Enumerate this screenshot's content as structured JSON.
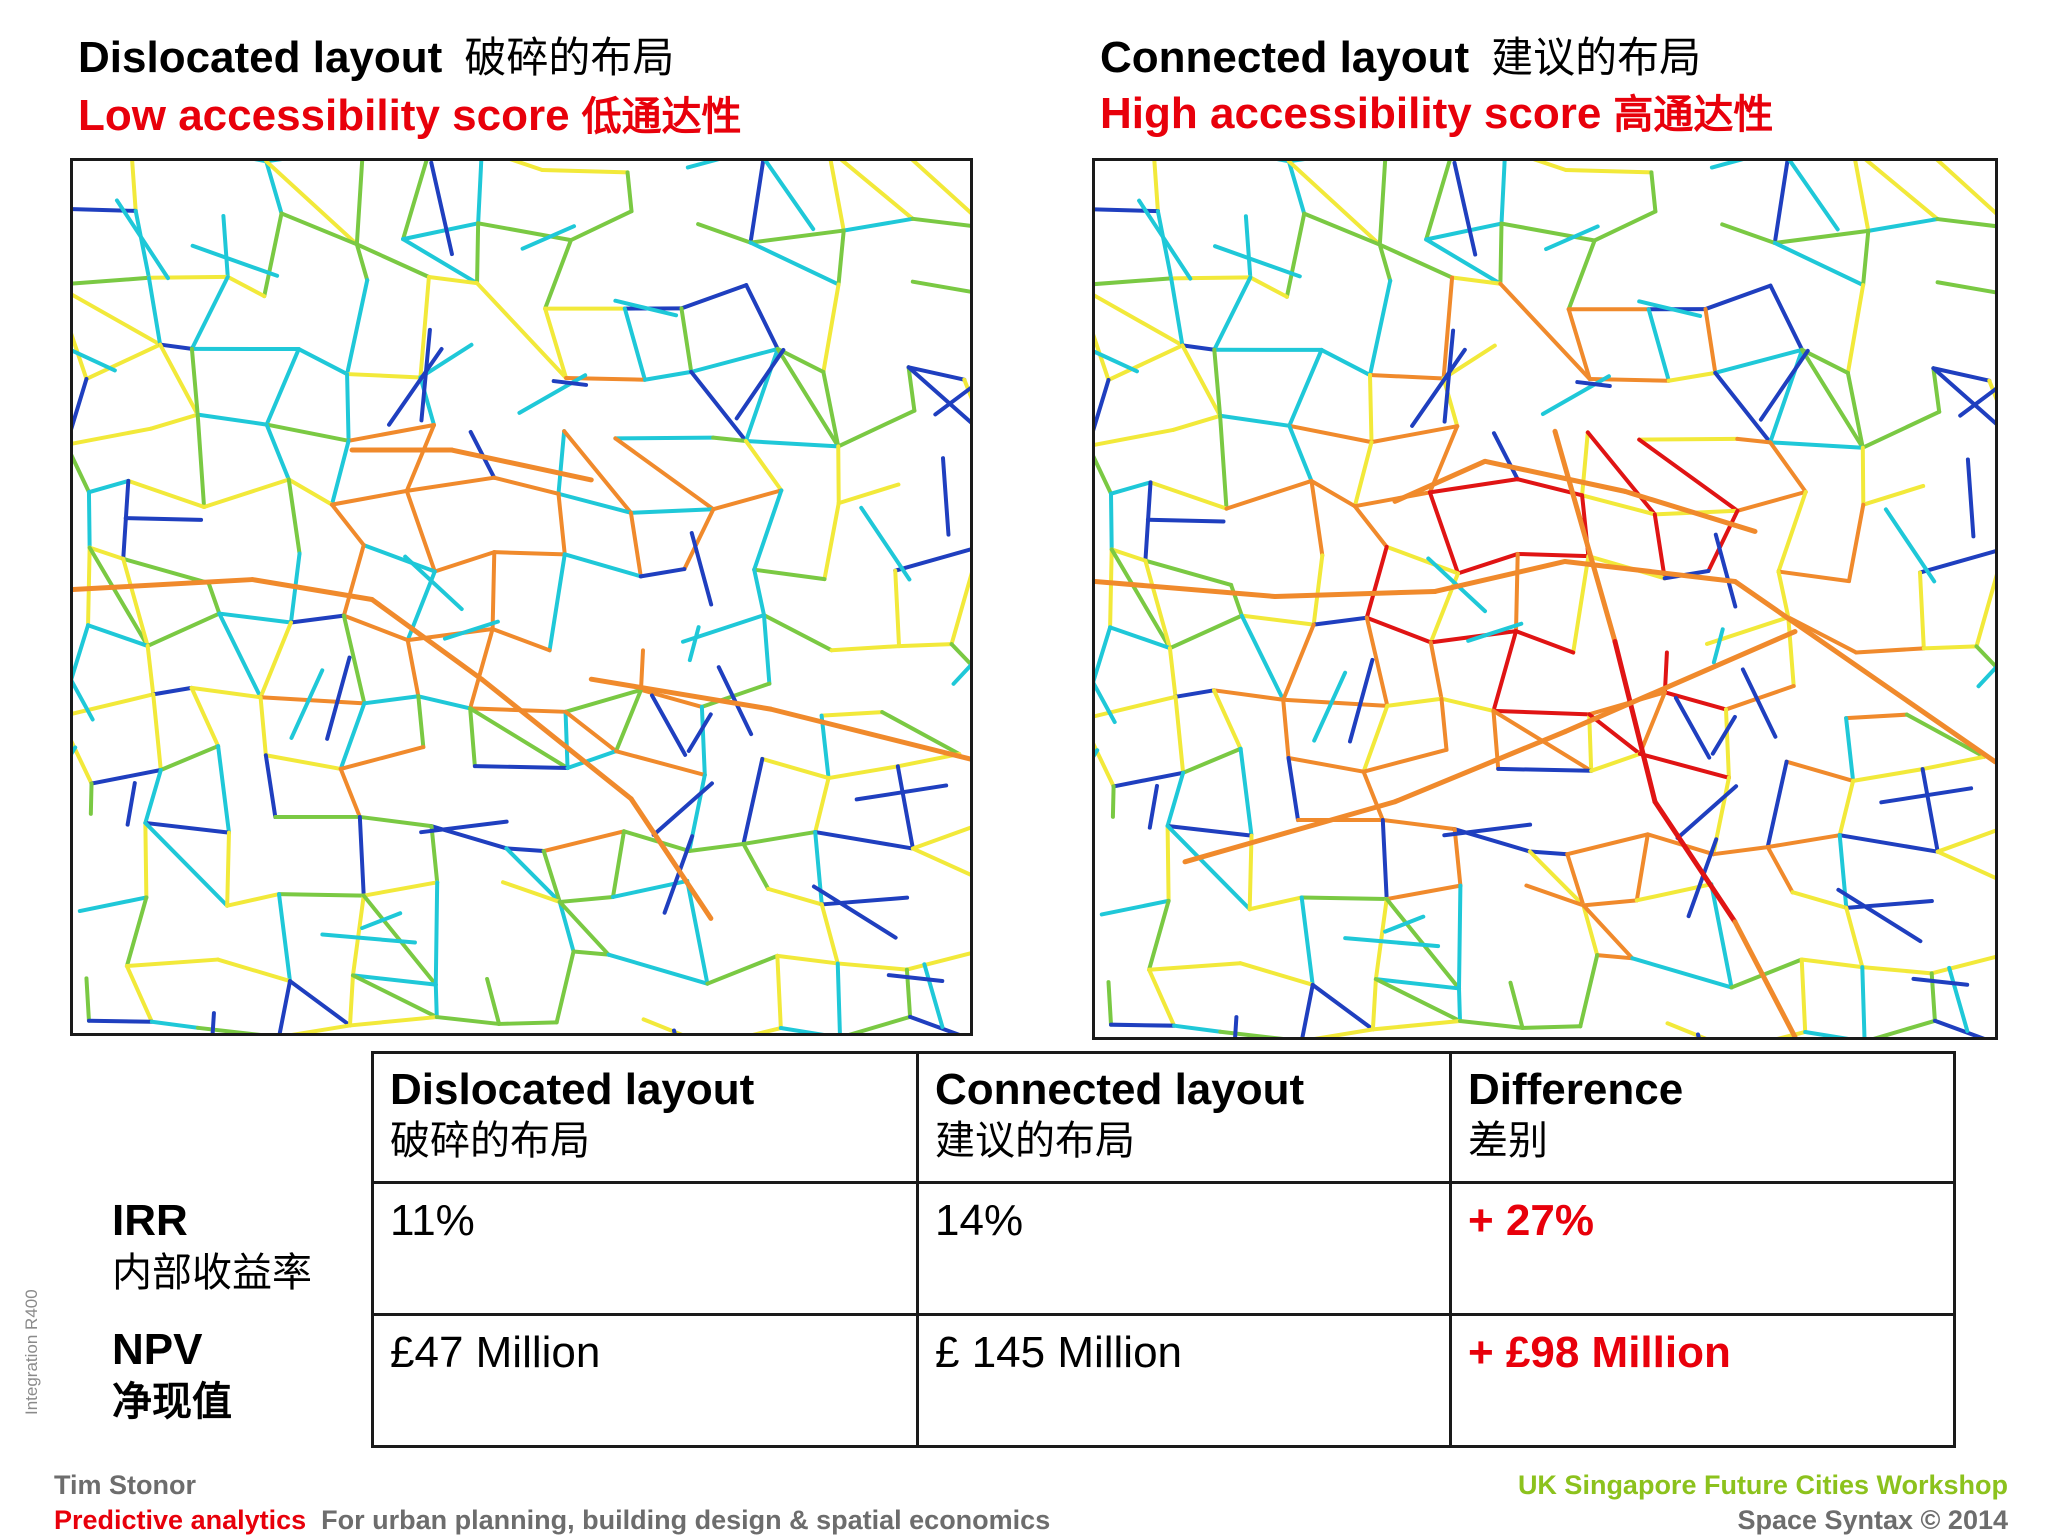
{
  "left_panel": {
    "title_en": "Dislocated layout",
    "title_zh": "破碎的布局",
    "score_en": "Low accessibility score",
    "score_zh": "低通达性"
  },
  "right_panel": {
    "title_en": "Connected layout",
    "title_zh": "建议的布局",
    "score_en": "High accessibility score",
    "score_zh": "高通达性"
  },
  "map_legend_colors": {
    "lowest": "#1f3fbf",
    "low": "#1fc8d8",
    "mid": "#7ac943",
    "high": "#f2e93a",
    "higher": "#f08a2c",
    "highest": "#e01414"
  },
  "table": {
    "headers": [
      {
        "en": "Dislocated layout",
        "zh": "破碎的布局"
      },
      {
        "en": "Connected layout",
        "zh": "建议的布局"
      },
      {
        "en": "Difference",
        "zh": "差别"
      }
    ],
    "rows": [
      {
        "label_en": "IRR",
        "label_zh": "内部收益率",
        "dislocated": "11%",
        "connected": "14%",
        "difference": "+ 27%"
      },
      {
        "label_en": "NPV",
        "label_zh": "净现值",
        "dislocated": "£47 Million",
        "connected": "£ 145 Million",
        "difference": "+ £98 Million"
      }
    ]
  },
  "side_note": "Integration R400",
  "footer": {
    "author": "Tim Stonor",
    "tagline_red": "Predictive analytics",
    "tagline_grey": "For urban planning, building design & spatial economics",
    "event": "UK Singapore Future Cities Workshop",
    "copyright": "Space Syntax ©  2014"
  },
  "colors": {
    "accent_red": "#e8000b",
    "event_green": "#8cc21d",
    "footer_grey": "#6d6d6d"
  }
}
